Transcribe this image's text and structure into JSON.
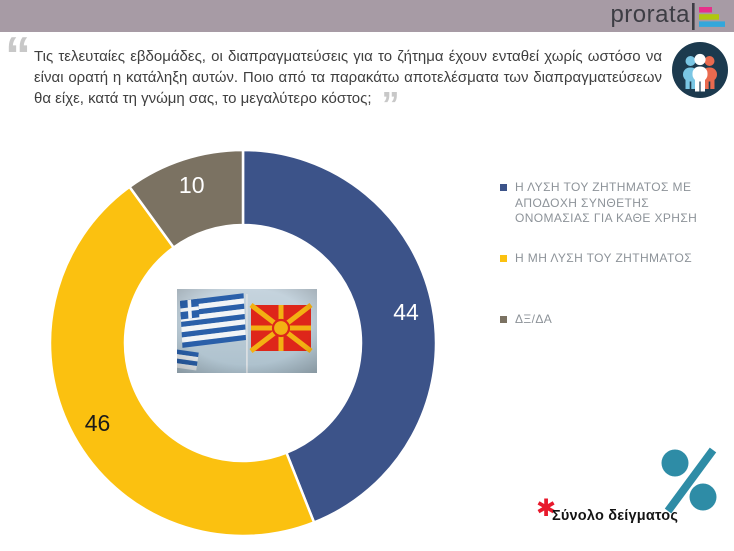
{
  "header": {
    "brand": "prorata",
    "band_color": "#a79ba5",
    "logo_bar_colors": [
      "#e6318a",
      "#afc80e",
      "#33a7db"
    ]
  },
  "question": {
    "open_quote": "“",
    "text": "Τις τελευταίες εβδομάδες, οι διαπραγματεύσεις για το ζήτημα έχουν ενταθεί χωρίς ωστόσο να είναι ορατή η κατάληξη αυτών. Ποιο από τα παρακάτω αποτελέσματα των διαπραγματεύσεων θα είχε, κατά τη γνώμη σας, το μεγαλύτερο κόστος;",
    "close_quote": "”"
  },
  "people_icon": {
    "circle_color": "#1c3a4e",
    "person_colors": [
      "#7ac6e4",
      "#ffffff",
      "#e96a4f"
    ]
  },
  "chart_data": {
    "type": "pie",
    "variant": "donut",
    "title": "",
    "start_angle_deg": 0,
    "direction": "clockwise",
    "legend_position": "right",
    "center_image": "greek-and-macedonian-flags-photo",
    "slices": [
      {
        "label": "Η ΛΥΣΗ ΤΟΥ ΖΗΤΗΜΑΤΟΣ ΜΕ ΑΠΟΔΟΧΗ ΣΥΝΘΕΤΗΣ ΟΝΟΜΑΣΙΑΣ ΓΙΑ ΚΑΘΕ ΧΡΗΣΗ",
        "value": 44,
        "color": "#3c5389",
        "label_color": "#ffffff"
      },
      {
        "label": "Η ΜΗ ΛΥΣΗ ΤΟΥ ΖΗΤΗΜΑΤΟΣ",
        "value": 46,
        "color": "#fbc110",
        "label_color": "#1a1a1a"
      },
      {
        "label": "ΔΞ/ΔΑ",
        "value": 10,
        "color": "#7b7262",
        "label_color": "#ffffff"
      }
    ]
  },
  "footnote": {
    "marker": "✱",
    "marker_color": "#e8192c",
    "text": "Σύνολο δείγματος"
  },
  "percent_icon_color": "#2e8ca6"
}
